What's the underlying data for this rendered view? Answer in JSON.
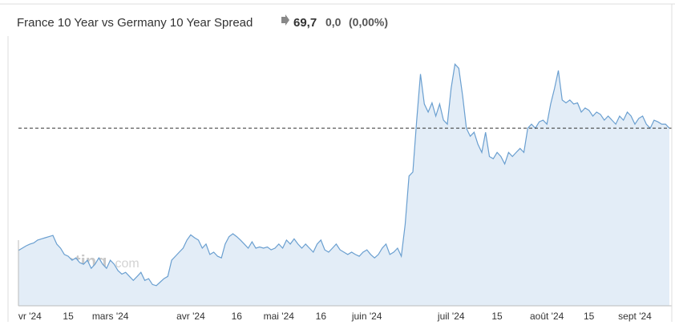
{
  "chart_data": {
    "type": "area",
    "title": "France 10 Year vs Germany 10 Year Spread",
    "price": "69,7",
    "change": "0,0",
    "change_percent": "(0,00%)",
    "watermark": {
      "brand": "Investing",
      "suffix": ".com"
    },
    "ylim": [
      38.9,
      84.3
    ],
    "categories": [
      null,
      null,
      null,
      "vr '24",
      null,
      null,
      null,
      null,
      null,
      null,
      null,
      null,
      null,
      "15",
      null,
      null,
      null,
      null,
      null,
      null,
      null,
      null,
      null,
      null,
      "mars '24",
      null,
      null,
      null,
      null,
      null,
      null,
      null,
      null,
      null,
      null,
      null,
      null,
      null,
      null,
      null,
      null,
      null,
      null,
      null,
      null,
      "avr '24",
      null,
      null,
      null,
      null,
      null,
      null,
      null,
      null,
      null,
      null,
      null,
      "16",
      null,
      null,
      null,
      null,
      null,
      null,
      null,
      null,
      null,
      null,
      "mai '24",
      null,
      null,
      null,
      null,
      null,
      null,
      null,
      null,
      null,
      null,
      "16",
      null,
      null,
      null,
      null,
      null,
      null,
      null,
      null,
      null,
      null,
      null,
      "juin '24",
      null,
      null,
      null,
      null,
      null,
      null,
      null,
      null,
      null,
      null,
      null,
      null,
      null,
      null,
      null,
      null,
      null,
      null,
      null,
      null,
      null,
      "juil '24",
      null,
      null,
      null,
      null,
      null,
      null,
      null,
      null,
      null,
      null,
      null,
      "15",
      null,
      null,
      null,
      null,
      null,
      null,
      null,
      null,
      null,
      null,
      null,
      null,
      "août '24",
      null,
      null,
      null,
      null,
      null,
      null,
      null,
      null,
      null,
      null,
      "15",
      null,
      null,
      null,
      null,
      null,
      null,
      null,
      null,
      null,
      null,
      null,
      "sept '24",
      null,
      null,
      null,
      null,
      null,
      null,
      null,
      null,
      null
    ],
    "series": [
      {
        "color": "#6a9fd0",
        "fill": "#e3edf7",
        "values": [
          48.5,
          48.9,
          49.3,
          49.6,
          49.8,
          50.3,
          50.5,
          50.7,
          50.9,
          51.1,
          49.6,
          48.9,
          47.8,
          47.5,
          46.8,
          47.2,
          46.4,
          46.1,
          46.8,
          45.4,
          46.1,
          47.2,
          46.1,
          45.4,
          46.8,
          46.1,
          45.0,
          44.4,
          44.7,
          44.0,
          43.3,
          44.0,
          44.7,
          43.3,
          43.6,
          42.6,
          42.4,
          43.0,
          43.6,
          44.0,
          46.8,
          47.5,
          48.2,
          48.9,
          50.3,
          51.2,
          50.7,
          50.3,
          48.9,
          49.6,
          47.8,
          48.2,
          47.5,
          47.2,
          49.6,
          50.9,
          51.4,
          50.9,
          50.3,
          49.6,
          48.9,
          50.0,
          48.9,
          49.1,
          48.9,
          49.1,
          48.6,
          48.9,
          49.6,
          48.9,
          50.3,
          49.6,
          50.5,
          49.6,
          48.9,
          49.6,
          48.9,
          48.2,
          49.6,
          50.3,
          48.6,
          48.2,
          48.9,
          49.6,
          48.6,
          48.2,
          47.8,
          48.2,
          47.8,
          47.5,
          48.2,
          48.6,
          47.8,
          47.2,
          47.8,
          48.9,
          49.6,
          47.8,
          48.2,
          48.9,
          47.5,
          53.0,
          61.4,
          62.1,
          71.1,
          79.1,
          73.9,
          72.5,
          74.1,
          71.8,
          73.9,
          71.1,
          70.4,
          76.6,
          80.8,
          80.1,
          75.3,
          69.7,
          68.3,
          69.0,
          66.9,
          65.5,
          69.0,
          64.8,
          64.4,
          65.5,
          64.8,
          63.5,
          65.5,
          64.8,
          65.5,
          66.2,
          65.5,
          69.7,
          70.4,
          69.7,
          70.8,
          71.1,
          70.4,
          73.9,
          76.6,
          79.7,
          74.6,
          74.1,
          74.6,
          73.9,
          74.1,
          72.5,
          73.2,
          72.8,
          71.8,
          72.5,
          72.1,
          71.1,
          71.8,
          71.1,
          70.4,
          71.8,
          71.1,
          72.5,
          71.8,
          70.4,
          71.4,
          71.8,
          70.4,
          69.7,
          71.1,
          70.8,
          70.4,
          70.4,
          69.7
        ]
      }
    ]
  }
}
